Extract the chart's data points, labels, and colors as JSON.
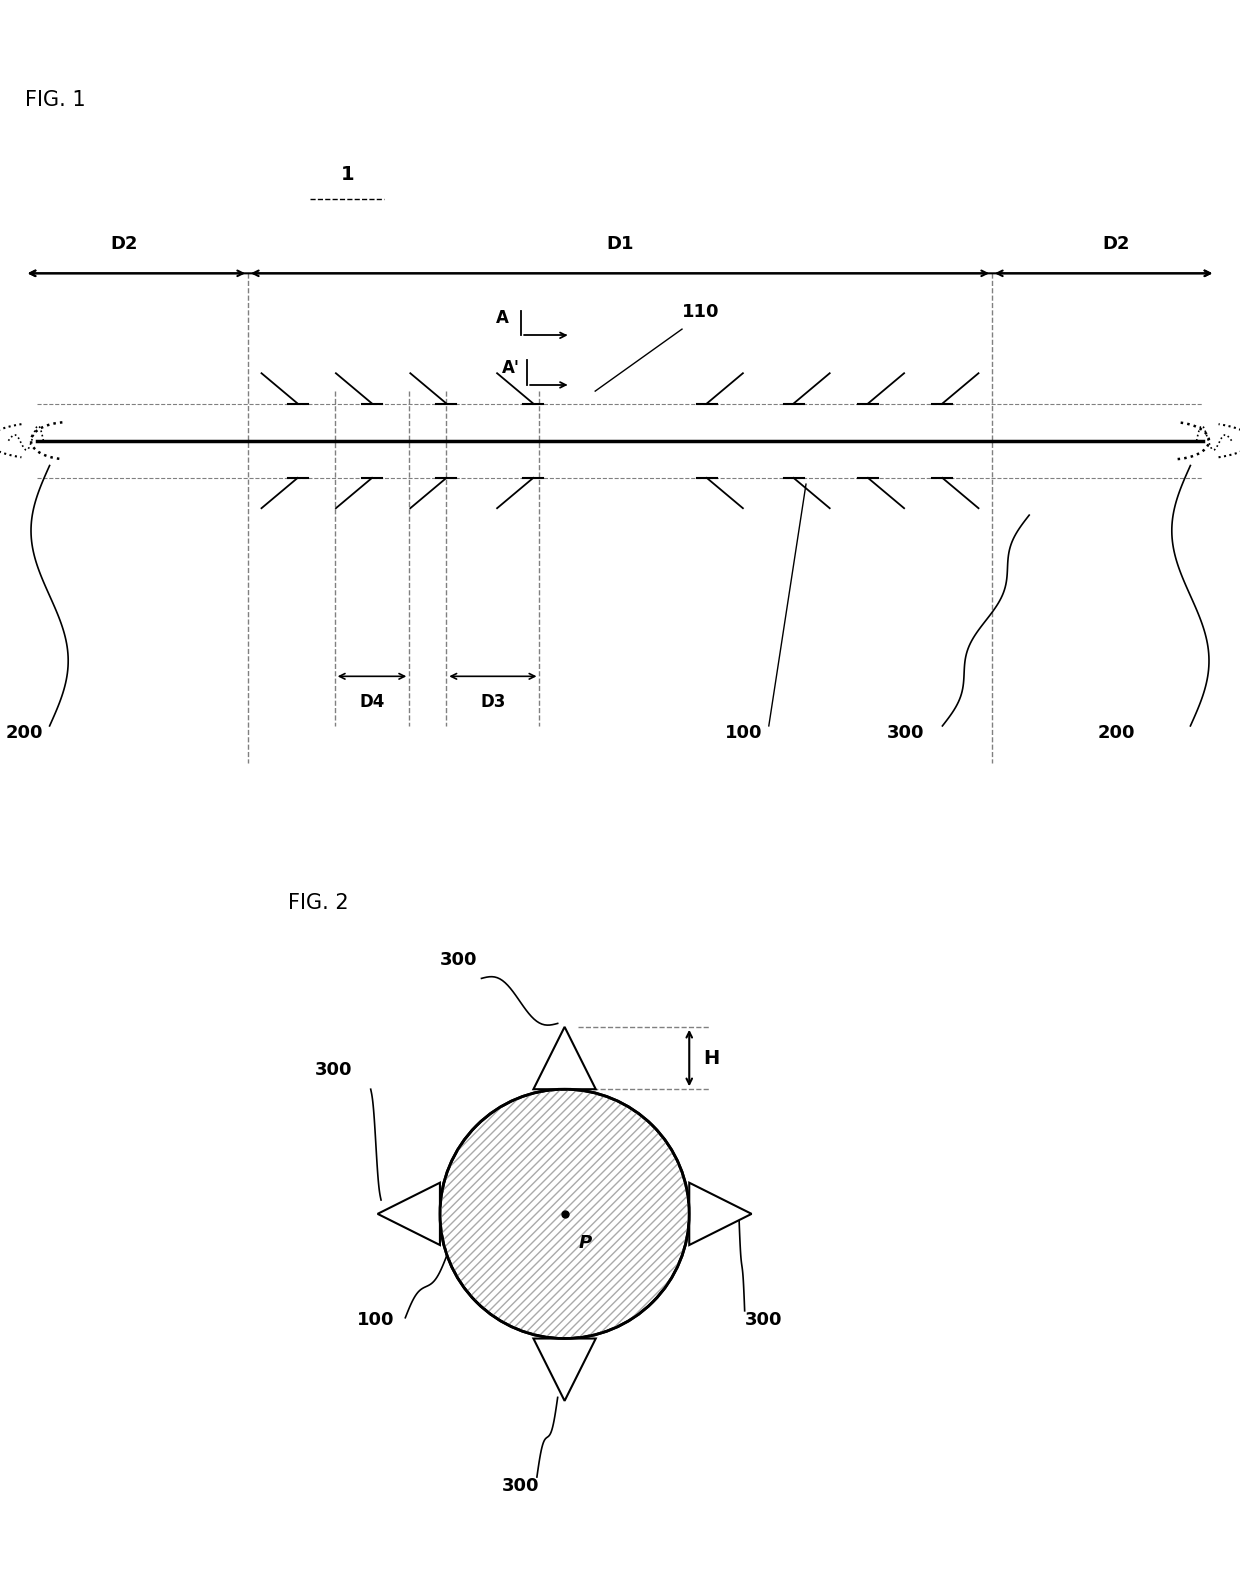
{
  "fig1_label": "FIG. 1",
  "fig2_label": "FIG. 2",
  "label_1": "1",
  "label_D1": "D1",
  "label_D2_left": "D2",
  "label_D2_right": "D2",
  "label_D3": "D3",
  "label_D4": "D4",
  "label_A": "A",
  "label_Aprime": "A'",
  "label_110": "110",
  "label_100": "100",
  "label_200_left": "200",
  "label_200_right": "200",
  "label_300_fig1": "300",
  "label_P": "P",
  "label_H": "H",
  "label_300_top": "300",
  "label_300_left": "300",
  "label_300_right": "300",
  "label_300_bottom": "300",
  "label_100_fig2": "100",
  "bg_color": "#ffffff"
}
